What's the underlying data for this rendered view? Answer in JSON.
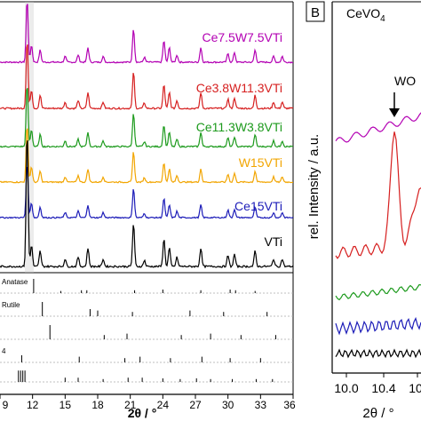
{
  "chart_data": [
    {
      "panel": "A",
      "type": "line",
      "xlabel": "2θ / °",
      "xlim": [
        9,
        36
      ],
      "xticks": [
        "9",
        "12",
        "15",
        "18",
        "21",
        "24",
        "27",
        "30",
        "33",
        "36"
      ],
      "series": [
        {
          "name": "Ce7.5W7.5VTi",
          "color": "#b300b3"
        },
        {
          "name": "Ce3.8W11.3VTi",
          "color": "#d61f1f"
        },
        {
          "name": "Ce11.3W3.8VTi",
          "color": "#1c9a1c"
        },
        {
          "name": "W15VTi",
          "color": "#f2a500"
        },
        {
          "name": "Ce15VTi",
          "color": "#1c1cb8"
        },
        {
          "name": "VTi",
          "color": "#000000"
        }
      ],
      "reference_patterns": [
        {
          "name": "Anatase"
        },
        {
          "name": "Rutile"
        },
        {
          "name": ""
        },
        {
          "name": "4"
        },
        {
          "name": ""
        }
      ]
    },
    {
      "panel": "B",
      "type": "line",
      "ylabel": "rel. Intensity / a.u.",
      "xlabel": "2θ / °",
      "xticks": [
        "10.0",
        "10.4",
        "10."
      ],
      "annotations": [
        "WO",
        "CeVO"
      ],
      "series": [
        {
          "color": "#b300b3"
        },
        {
          "color": "#d61f1f"
        },
        {
          "color": "#1c9a1c"
        },
        {
          "color": "#1c1cb8"
        },
        {
          "color": "#000000"
        }
      ]
    }
  ],
  "panel_b": {
    "letter": "B",
    "legend_main": "CeVO",
    "legend_sub": "4",
    "arrow_label": "WO"
  }
}
